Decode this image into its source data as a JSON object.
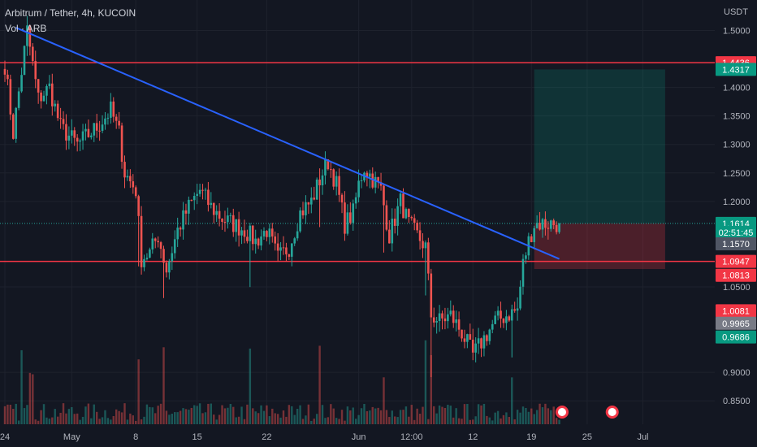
{
  "header": {
    "title": "Arbitrum / Tether, 4h, KUCOIN",
    "volume_label": "Vol · ARB"
  },
  "colors": {
    "background": "#131722",
    "up": "#26a69a",
    "down": "#ef5350",
    "trendline": "#2962ff",
    "hline": "#f23645",
    "grid": "#1e222d"
  },
  "chart_data": {
    "type": "candlestick",
    "currency": "USDT",
    "ylim": [
      0.845,
      1.55
    ],
    "y_ticks": [
      "1.5000",
      "1.4000",
      "1.3500",
      "1.3000",
      "1.2500",
      "1.2000",
      "1.0500",
      "0.9000",
      "0.8500"
    ],
    "x_ticks": [
      "24",
      "May",
      "8",
      "15",
      "22",
      "Jun",
      "12:00",
      "12",
      "19",
      "25",
      "Jul"
    ],
    "price_tags": [
      {
        "label": "1.4436",
        "value": 1.4436,
        "bg": "#f23645",
        "fg": "#ffffff"
      },
      {
        "label": "1.4317",
        "value": 1.4317,
        "bg": "#089981",
        "fg": "#ffffff"
      },
      {
        "label": "1.1614",
        "value": 1.1614,
        "bg": "#089981",
        "fg": "#ffffff"
      },
      {
        "label": "02:51:45",
        "value": 1.1455,
        "bg": "#089981",
        "fg": "#ffffff"
      },
      {
        "label": "1.1570",
        "value": 1.1255,
        "bg": "#505665",
        "fg": "#ffffff"
      },
      {
        "label": "1.0947",
        "value": 1.0947,
        "bg": "#f23645",
        "fg": "#ffffff"
      },
      {
        "label": "1.0813",
        "value": 1.0703,
        "bg": "#f23645",
        "fg": "#ffffff"
      },
      {
        "label": "1.0081",
        "value": 1.0081,
        "bg": "#f23645",
        "fg": "#ffffff"
      },
      {
        "label": "0.9965",
        "value": 0.986,
        "bg": "#787b86",
        "fg": "#ffffff"
      },
      {
        "label": "0.9686",
        "value": 0.962,
        "bg": "#089981",
        "fg": "#ffffff"
      }
    ],
    "horizontal_lines": [
      1.4436,
      1.0947
    ],
    "last_price": 1.1614,
    "trendline": {
      "from": {
        "bar": 4,
        "price": 1.505
      },
      "to": {
        "bar": 199,
        "price": 1.099
      }
    },
    "position": {
      "entry": 1.1614,
      "target": 1.4317,
      "stop": 1.0813,
      "from_bar": 190,
      "to_bar": 237
    },
    "bars": 200,
    "price_path": [
      [
        0,
        1.44
      ],
      [
        3,
        1.32
      ],
      [
        8,
        1.5
      ],
      [
        12,
        1.38
      ],
      [
        16,
        1.4
      ],
      [
        20,
        1.33
      ],
      [
        26,
        1.3
      ],
      [
        33,
        1.33
      ],
      [
        38,
        1.36
      ],
      [
        41,
        1.32
      ],
      [
        43,
        1.25
      ],
      [
        47,
        1.22
      ],
      [
        49,
        1.1
      ],
      [
        52,
        1.11
      ],
      [
        55,
        1.14
      ],
      [
        58,
        1.08
      ],
      [
        62,
        1.15
      ],
      [
        66,
        1.19
      ],
      [
        70,
        1.22
      ],
      [
        74,
        1.19
      ],
      [
        78,
        1.17
      ],
      [
        82,
        1.16
      ],
      [
        86,
        1.15
      ],
      [
        90,
        1.13
      ],
      [
        94,
        1.15
      ],
      [
        98,
        1.1
      ],
      [
        102,
        1.12
      ],
      [
        106,
        1.18
      ],
      [
        110,
        1.2
      ],
      [
        114,
        1.25
      ],
      [
        116,
        1.27
      ],
      [
        119,
        1.23
      ],
      [
        122,
        1.16
      ],
      [
        125,
        1.18
      ],
      [
        127,
        1.23
      ],
      [
        129,
        1.26
      ],
      [
        132,
        1.24
      ],
      [
        135,
        1.22
      ],
      [
        138,
        1.14
      ],
      [
        142,
        1.2
      ],
      [
        145,
        1.16
      ],
      [
        148,
        1.14
      ],
      [
        151,
        1.12
      ],
      [
        153,
        1.0
      ],
      [
        156,
        0.99
      ],
      [
        160,
        1.0
      ],
      [
        164,
        0.97
      ],
      [
        168,
        0.93
      ],
      [
        172,
        0.96
      ],
      [
        176,
        0.99
      ],
      [
        180,
        1.0
      ],
      [
        184,
        1.01
      ],
      [
        186,
        1.09
      ],
      [
        188,
        1.13
      ],
      [
        190,
        1.16
      ],
      [
        191,
        1.161
      ]
    ],
    "volume_spike_bars": [
      6,
      9,
      10,
      48,
      57,
      88,
      113,
      136,
      151,
      153,
      182
    ]
  }
}
